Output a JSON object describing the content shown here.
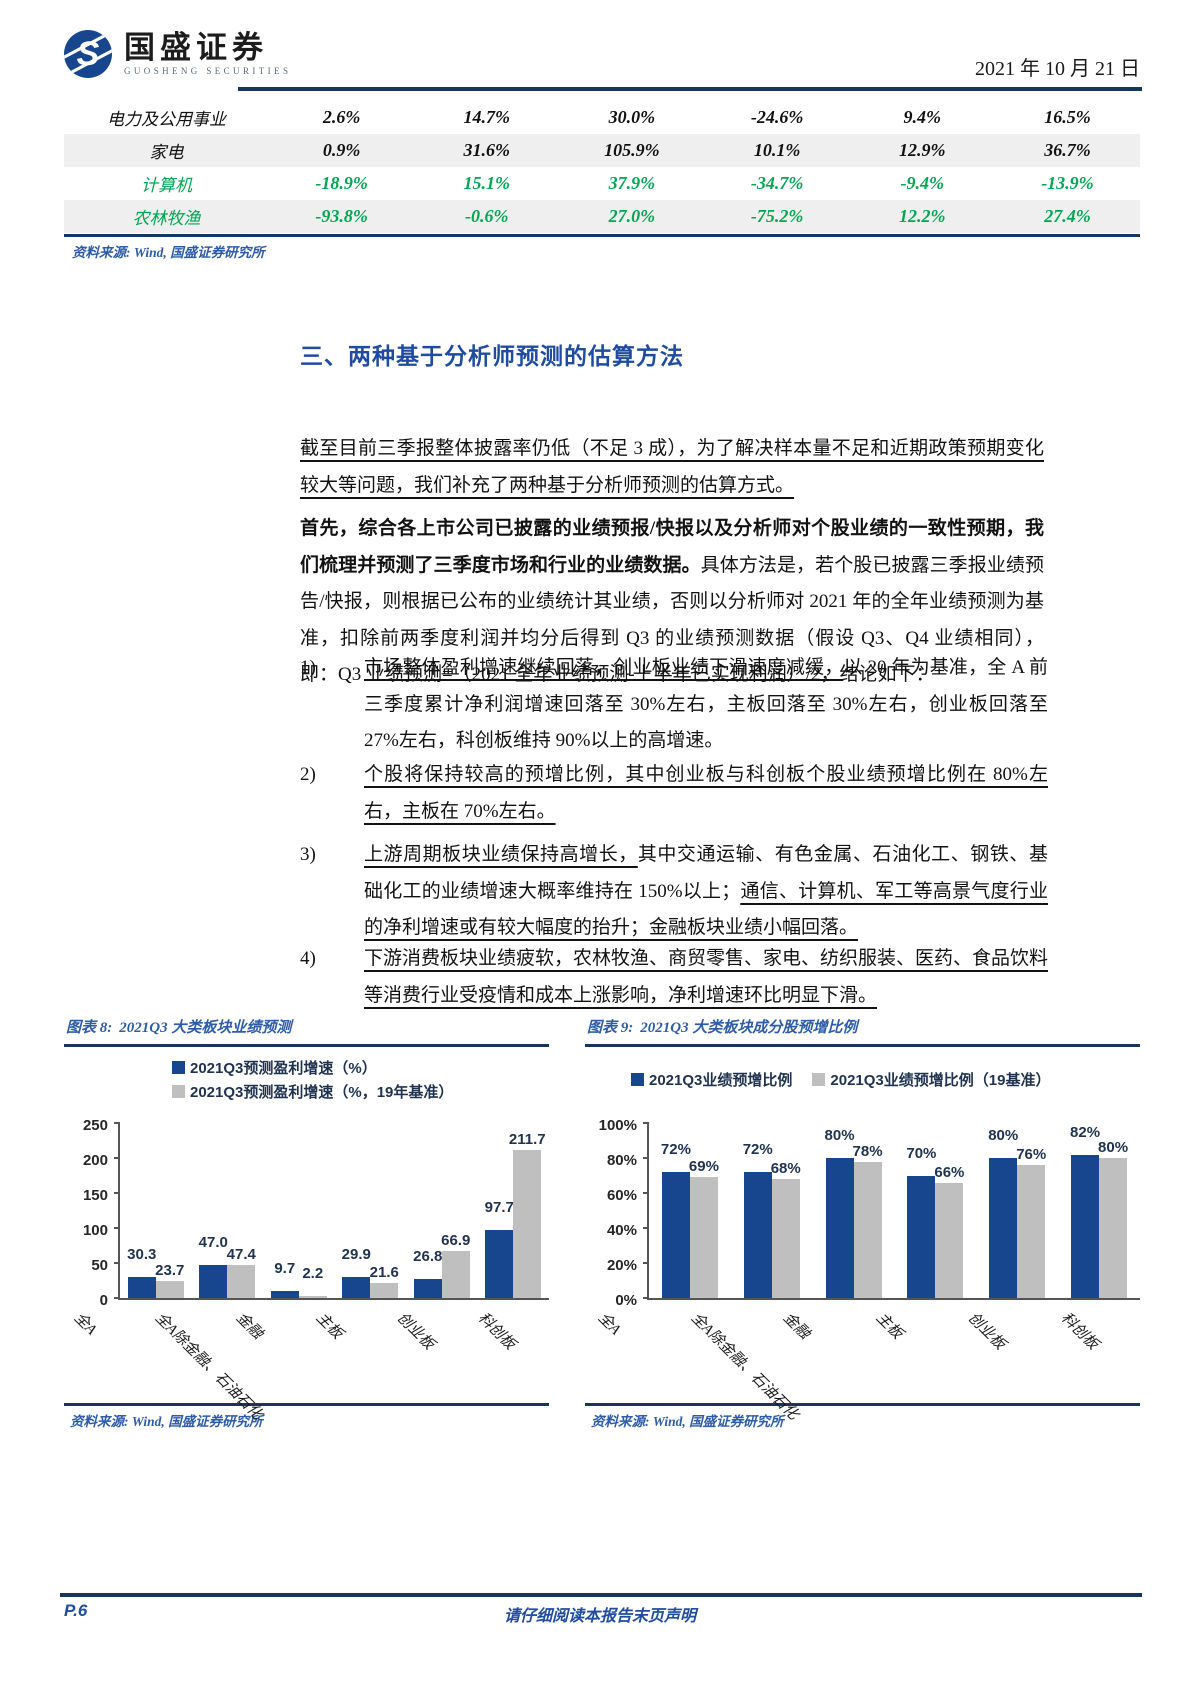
{
  "header": {
    "logo_title": "国盛证券",
    "logo_subtitle": "GUOSHENG SECURITIES",
    "date": "2021 年 10 月 21 日"
  },
  "colors": {
    "rule_navy": "#17365d",
    "heading_blue": "#1f4ca0",
    "source_blue": "#2d5ca8",
    "bar_blue": "#17468f",
    "bar_gray": "#bfbfbf",
    "table_green": "#00a750",
    "stripe_gray": "#efeff0"
  },
  "table": {
    "rows": [
      {
        "label": "电力及公用事业",
        "values": [
          "2.6%",
          "14.7%",
          "30.0%",
          "-24.6%",
          "9.4%",
          "16.5%"
        ],
        "color": "black"
      },
      {
        "label": "家电",
        "values": [
          "0.9%",
          "31.6%",
          "105.9%",
          "10.1%",
          "12.9%",
          "36.7%"
        ],
        "color": "black"
      },
      {
        "label": "计算机",
        "values": [
          "-18.9%",
          "15.1%",
          "37.9%",
          "-34.7%",
          "-9.4%",
          "-13.9%"
        ],
        "color": "green"
      },
      {
        "label": "农林牧渔",
        "values": [
          "-93.8%",
          "-0.6%",
          "27.0%",
          "-75.2%",
          "12.2%",
          "27.4%"
        ],
        "color": "green"
      }
    ],
    "source": "资料来源: Wind, 国盛证券研究所"
  },
  "section": {
    "heading": "三、两种基于分析师预测的估算方法",
    "para1": "截至目前三季报整体披露率仍低（不足 3 成），为了解决样本量不足和近期政策预期变化较大等问题，我们补充了两种基于分析师预测的估算方式。",
    "para2_bold": "首先，综合各上市公司已披露的业绩预报/快报以及分析师对个股业绩的一致性预期，我们梳理并预测了三季度市场和行业的业绩数据。",
    "para2_rest": "具体方法是，若个股已披露三季报业绩预告/快报，则根据已公布的业绩统计其业绩，否则以分析师对 2021 年的全年业绩预测为基准，扣除前两季度利润并均分后得到 Q3 的业绩预测数据（假设 Q3、Q4 业绩相同），即：Q3 业绩预测=（2021 全年业绩预测-上半年已实现利润）/2，结论如下：",
    "items": [
      {
        "num": "1)",
        "u1": "市场整体盈利增速继续回落，创业板业绩下滑速度减缓，",
        "n1": "以 20 年为基准，全 A 前三季度累计净利润增速回落至 30%左右，主板回落至 30%左右，创业板回落至 27%左右，科创板维持 90%以上的高增速。",
        "u2": ""
      },
      {
        "num": "2)",
        "u1": "个股将保持较高的预增比例，其中创业板与科创板个股业绩预增比例在 80%左右，主板在 70%左右。",
        "n1": "",
        "u2": ""
      },
      {
        "num": "3)",
        "u1": "上游周期板块业绩保持高增长，",
        "n1": "其中交通运输、有色金属、石油化工、钢铁、基础化工的业绩增速大概率维持在 150%以上；",
        "u2": "通信、计算机、军工等高景气度行业的净利增速或有较大幅度的抬升；金融板块业绩小幅回落。"
      },
      {
        "num": "4)",
        "u1": "下游消费板块业绩疲软，农林牧渔、商贸零售、家电、纺织服装、医药、食品饮料等消费行业受疫情和成本上涨影响，净利增速环比明显下滑。",
        "n1": "",
        "u2": ""
      }
    ]
  },
  "chart_data": [
    {
      "type": "bar",
      "figure_label": "图表 8:",
      "title": "2021Q3 大类板块业绩预测",
      "categories": [
        "全A",
        "全A除金融、石油石化",
        "金融",
        "主板",
        "创业板",
        "科创板"
      ],
      "series": [
        {
          "name": "2021Q3预测盈利增速（%）",
          "color": "#17468f",
          "values": [
            30.3,
            47.0,
            9.7,
            29.9,
            26.8,
            97.7
          ],
          "labels": [
            "30.3",
            "47.0",
            "9.7",
            "29.9",
            "26.8",
            "97.7"
          ]
        },
        {
          "name": "2021Q3预测盈利增速（%，19年基准）",
          "color": "#bfbfbf",
          "values": [
            23.7,
            47.4,
            2.2,
            21.6,
            66.9,
            211.7
          ],
          "labels": [
            "23.7",
            "47.4",
            "2.2",
            "21.6",
            "66.9",
            "211.7"
          ]
        }
      ],
      "ylim": [
        0,
        250
      ],
      "yticks": [
        "0",
        "50",
        "100",
        "150",
        "200",
        "250"
      ],
      "legend_position": "top",
      "grid": false,
      "source": "资料来源: Wind, 国盛证券研究所"
    },
    {
      "type": "bar",
      "figure_label": "图表 9:",
      "title": "2021Q3 大类板块成分股预增比例",
      "categories": [
        "全A",
        "全A除金融、石油石化",
        "金融",
        "主板",
        "创业板",
        "科创板"
      ],
      "series": [
        {
          "name": "2021Q3业绩预增比例",
          "color": "#17468f",
          "values": [
            72,
            72,
            80,
            70,
            80,
            82
          ],
          "labels": [
            "72%",
            "72%",
            "80%",
            "70%",
            "80%",
            "82%"
          ]
        },
        {
          "name": "2021Q3业绩预增比例（19基准）",
          "color": "#bfbfbf",
          "values": [
            69,
            68,
            78,
            66,
            76,
            80
          ],
          "labels": [
            "69%",
            "68%",
            "78%",
            "66%",
            "76%",
            "80%"
          ]
        }
      ],
      "ylim": [
        0,
        100
      ],
      "yticks": [
        "0%",
        "20%",
        "40%",
        "60%",
        "80%",
        "100%"
      ],
      "legend_position": "top",
      "grid": false,
      "source": "资料来源: Wind, 国盛证券研究所"
    }
  ],
  "footer": {
    "page_label": "P.6",
    "disclaimer": "请仔细阅读本报告末页声明"
  }
}
